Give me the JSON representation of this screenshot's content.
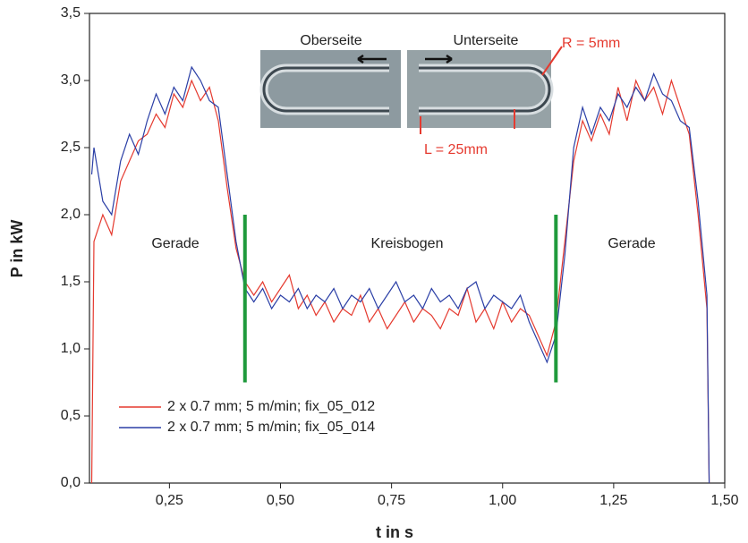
{
  "chart_data": {
    "type": "line",
    "xlabel": "t in s",
    "ylabel": "P in kW",
    "xlim": [
      0.07,
      1.5
    ],
    "ylim": [
      0,
      3.5
    ],
    "xticks": [
      {
        "value": 0.25,
        "label": "0,25"
      },
      {
        "value": 0.5,
        "label": "0,50"
      },
      {
        "value": 0.75,
        "label": "0,75"
      },
      {
        "value": 1.0,
        "label": "1,00"
      },
      {
        "value": 1.25,
        "label": "1,25"
      },
      {
        "value": 1.5,
        "label": "1,50"
      }
    ],
    "yticks": [
      {
        "value": 0,
        "label": "0,0"
      },
      {
        "value": 0.5,
        "label": "0,5"
      },
      {
        "value": 1.0,
        "label": "1,0"
      },
      {
        "value": 1.5,
        "label": "1,5"
      },
      {
        "value": 2.0,
        "label": "2,0"
      },
      {
        "value": 2.5,
        "label": "2,5"
      },
      {
        "value": 3.0,
        "label": "3,0"
      },
      {
        "value": 3.5,
        "label": "3,5"
      }
    ],
    "x": [
      0.075,
      0.08,
      0.1,
      0.12,
      0.14,
      0.16,
      0.18,
      0.2,
      0.22,
      0.24,
      0.26,
      0.28,
      0.3,
      0.32,
      0.34,
      0.36,
      0.38,
      0.4,
      0.42,
      0.44,
      0.46,
      0.48,
      0.5,
      0.52,
      0.54,
      0.56,
      0.58,
      0.6,
      0.62,
      0.64,
      0.66,
      0.68,
      0.7,
      0.72,
      0.74,
      0.76,
      0.78,
      0.8,
      0.82,
      0.84,
      0.86,
      0.88,
      0.9,
      0.92,
      0.94,
      0.96,
      0.98,
      1.0,
      1.02,
      1.04,
      1.06,
      1.08,
      1.1,
      1.12,
      1.14,
      1.16,
      1.18,
      1.2,
      1.22,
      1.24,
      1.26,
      1.28,
      1.3,
      1.32,
      1.34,
      1.36,
      1.38,
      1.4,
      1.42,
      1.44,
      1.46,
      1.465
    ],
    "series": [
      {
        "name": "2 x 0.7 mm; 5 m/min; fix_05_012",
        "color": "#e53a2f",
        "values": [
          0,
          1.8,
          2.0,
          1.85,
          2.25,
          2.4,
          2.55,
          2.6,
          2.75,
          2.65,
          2.9,
          2.8,
          3.0,
          2.85,
          2.95,
          2.7,
          2.2,
          1.75,
          1.5,
          1.4,
          1.5,
          1.35,
          1.45,
          1.55,
          1.3,
          1.4,
          1.25,
          1.35,
          1.2,
          1.3,
          1.25,
          1.4,
          1.2,
          1.3,
          1.15,
          1.25,
          1.35,
          1.2,
          1.3,
          1.25,
          1.15,
          1.3,
          1.25,
          1.45,
          1.2,
          1.3,
          1.15,
          1.35,
          1.2,
          1.3,
          1.25,
          1.1,
          0.95,
          1.2,
          1.8,
          2.4,
          2.7,
          2.55,
          2.75,
          2.6,
          2.95,
          2.7,
          3.0,
          2.85,
          2.95,
          2.75,
          3.0,
          2.8,
          2.6,
          2.0,
          1.3,
          0
        ]
      },
      {
        "name": "2 x 0.7 mm; 5 m/min; fix_05_014",
        "color": "#2b3fa6",
        "values": [
          2.3,
          2.5,
          2.1,
          2.0,
          2.4,
          2.6,
          2.45,
          2.7,
          2.9,
          2.75,
          2.95,
          2.85,
          3.1,
          3.0,
          2.85,
          2.8,
          2.3,
          1.8,
          1.45,
          1.35,
          1.45,
          1.3,
          1.4,
          1.35,
          1.45,
          1.3,
          1.4,
          1.35,
          1.45,
          1.3,
          1.4,
          1.35,
          1.45,
          1.3,
          1.4,
          1.5,
          1.35,
          1.4,
          1.3,
          1.45,
          1.35,
          1.4,
          1.3,
          1.45,
          1.5,
          1.3,
          1.4,
          1.35,
          1.3,
          1.4,
          1.2,
          1.05,
          0.9,
          1.1,
          1.7,
          2.5,
          2.8,
          2.6,
          2.8,
          2.7,
          2.9,
          2.8,
          2.95,
          2.85,
          3.05,
          2.9,
          2.85,
          2.7,
          2.65,
          2.1,
          1.4,
          0
        ]
      }
    ],
    "vlines": [
      {
        "x": 0.42,
        "y": [
          0.75,
          2.0
        ]
      },
      {
        "x": 1.12,
        "y": [
          0.75,
          2.0
        ]
      }
    ],
    "vline_color": "#1f9a3c",
    "legend": "lower left",
    "annotations": [
      "Gerade",
      "Kreisbogen",
      "Gerade",
      "Oberseite",
      "Unterseite",
      "R = 5mm",
      "L = 25mm"
    ]
  }
}
